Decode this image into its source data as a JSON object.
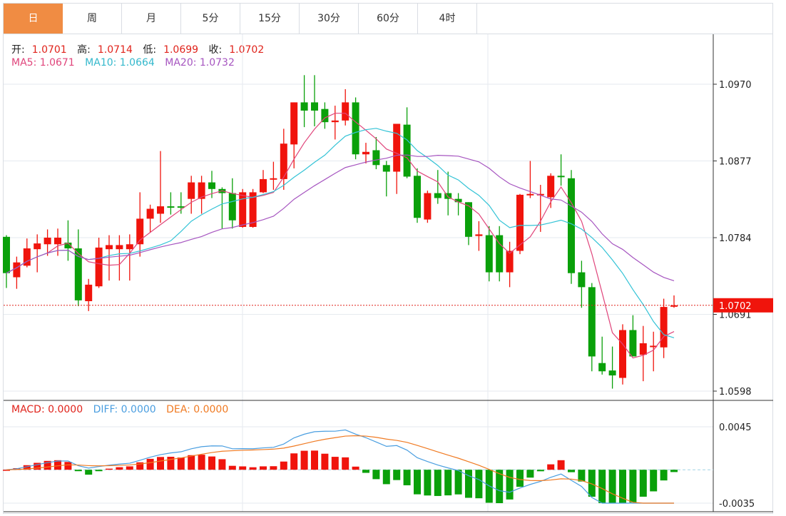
{
  "tabs": [
    {
      "label": "日",
      "active": true
    },
    {
      "label": "周",
      "active": false
    },
    {
      "label": "月",
      "active": false
    },
    {
      "label": "5分",
      "active": false
    },
    {
      "label": "15分",
      "active": false
    },
    {
      "label": "30分",
      "active": false
    },
    {
      "label": "60分",
      "active": false
    },
    {
      "label": "4时",
      "active": false
    }
  ],
  "ohlc_legend": {
    "open_label": "开:",
    "open": "1.0701",
    "high_label": "高:",
    "high": "1.0714",
    "low_label": "低:",
    "low": "1.0699",
    "close_label": "收:",
    "close": "1.0702"
  },
  "ma_legend": {
    "ma5": "MA5: 1.0671",
    "ma10": "MA10: 1.0664",
    "ma20": "MA20: 1.0732"
  },
  "macd_legend": {
    "macd": "MACD: 0.0000",
    "diff": "DIFF: 0.0000",
    "dea": "DEA: 0.0000"
  },
  "colors": {
    "up": "#f0140c",
    "down": "#0aa00a",
    "ma5": "#e0457b",
    "ma10": "#33c3d6",
    "ma20": "#a655c0",
    "diff": "#4a9ee0",
    "dea": "#f07a22",
    "active_tab": "#f08c43"
  },
  "chart_data": [
    {
      "type": "candlestick",
      "ylim": [
        1.0598,
        1.097
      ],
      "yticks": [
        "1.0970",
        "1.0877",
        "1.0784",
        "1.0691",
        "1.0598"
      ],
      "last_price": "1.0702",
      "ma_periods": [
        5,
        10,
        20
      ],
      "grid": true,
      "ohlc": [
        [
          1.0785,
          1.0787,
          1.0723,
          1.0741
        ],
        [
          1.0736,
          1.0761,
          1.0722,
          1.0754
        ],
        [
          1.075,
          1.0783,
          1.0748,
          1.0771
        ],
        [
          1.077,
          1.0788,
          1.0742,
          1.0777
        ],
        [
          1.0776,
          1.0794,
          1.0762,
          1.0784
        ],
        [
          1.0776,
          1.0795,
          1.0762,
          1.0784
        ],
        [
          1.0778,
          1.0805,
          1.0756,
          1.0771
        ],
        [
          1.0771,
          1.0794,
          1.0701,
          1.0708
        ],
        [
          1.0707,
          1.0734,
          1.0695,
          1.0727
        ],
        [
          1.0725,
          1.0784,
          1.0723,
          1.0772
        ],
        [
          1.077,
          1.0787,
          1.0732,
          1.0775
        ],
        [
          1.077,
          1.0787,
          1.0732,
          1.0775
        ],
        [
          1.077,
          1.0788,
          1.0732,
          1.0776
        ],
        [
          1.0776,
          1.0839,
          1.0761,
          1.0807
        ],
        [
          1.0807,
          1.0824,
          1.079,
          1.0819
        ],
        [
          1.0813,
          1.0889,
          1.0802,
          1.0822
        ],
        [
          1.0822,
          1.0839,
          1.0812,
          1.0821
        ],
        [
          1.0822,
          1.0839,
          1.0813,
          1.0821
        ],
        [
          1.0831,
          1.0859,
          1.0813,
          1.0851
        ],
        [
          1.0831,
          1.0859,
          1.0813,
          1.0851
        ],
        [
          1.0851,
          1.0865,
          1.0832,
          1.0843
        ],
        [
          1.0843,
          1.0845,
          1.0795,
          1.0838
        ],
        [
          1.0838,
          1.0856,
          1.0795,
          1.0805
        ],
        [
          1.0797,
          1.0843,
          1.0796,
          1.0839
        ],
        [
          1.0797,
          1.0843,
          1.0796,
          1.0839
        ],
        [
          1.0839,
          1.0866,
          1.0838,
          1.0855
        ],
        [
          1.0855,
          1.0876,
          1.0842,
          1.0856
        ],
        [
          1.0855,
          1.0916,
          1.0842,
          1.0898
        ],
        [
          1.0897,
          1.0948,
          1.0868,
          1.0948
        ],
        [
          1.0948,
          1.0981,
          1.0918,
          1.0938
        ],
        [
          1.0948,
          1.0981,
          1.0919,
          1.0938
        ],
        [
          1.094,
          1.0948,
          1.0916,
          1.0924
        ],
        [
          1.0924,
          1.0944,
          1.0903,
          1.0926
        ],
        [
          1.0926,
          1.0964,
          1.092,
          1.0948
        ],
        [
          1.0948,
          1.0954,
          1.0879,
          1.0885
        ],
        [
          1.0885,
          1.0899,
          1.0874,
          1.0888
        ],
        [
          1.089,
          1.0906,
          1.0867,
          1.0872
        ],
        [
          1.0872,
          1.0877,
          1.0834,
          1.0864
        ],
        [
          1.0864,
          1.0922,
          1.0837,
          1.0922
        ],
        [
          1.0921,
          1.0942,
          1.0856,
          1.0858
        ],
        [
          1.0859,
          1.0868,
          1.0802,
          1.0808
        ],
        [
          1.0806,
          1.0841,
          1.0802,
          1.0838
        ],
        [
          1.0838,
          1.0866,
          1.0825,
          1.0832
        ],
        [
          1.0838,
          1.0864,
          1.0811,
          1.0831
        ],
        [
          1.0831,
          1.0838,
          1.0811,
          1.0827
        ],
        [
          1.0827,
          1.0827,
          1.0775,
          1.0785
        ],
        [
          1.0786,
          1.0804,
          1.0768,
          1.0788
        ],
        [
          1.0787,
          1.0798,
          1.0731,
          1.0742
        ],
        [
          1.0787,
          1.0798,
          1.0731,
          1.0742
        ],
        [
          1.0742,
          1.0779,
          1.0724,
          1.0768
        ],
        [
          1.0768,
          1.0837,
          1.0764,
          1.0836
        ],
        [
          1.0836,
          1.0877,
          1.0832,
          1.0837
        ],
        [
          1.0836,
          1.0848,
          1.0791,
          1.0837
        ],
        [
          1.0833,
          1.0862,
          1.082,
          1.0859
        ],
        [
          1.0859,
          1.0885,
          1.0847,
          1.0858
        ],
        [
          1.0856,
          1.0866,
          1.0728,
          1.0741
        ],
        [
          1.0742,
          1.0756,
          1.0699,
          1.0724
        ],
        [
          1.0724,
          1.0729,
          1.0622,
          1.064
        ],
        [
          1.0632,
          1.0664,
          1.0618,
          1.0622
        ],
        [
          1.0623,
          1.0652,
          1.0601,
          1.0617
        ],
        [
          1.0614,
          1.0679,
          1.0606,
          1.0672
        ],
        [
          1.0672,
          1.069,
          1.064,
          1.064
        ],
        [
          1.0642,
          1.0677,
          1.061,
          1.0656
        ],
        [
          1.0652,
          1.067,
          1.0622,
          1.0653
        ],
        [
          1.0651,
          1.071,
          1.0638,
          1.07
        ],
        [
          1.0701,
          1.0714,
          1.0699,
          1.0702
        ]
      ]
    },
    {
      "type": "macd",
      "ylim": [
        -0.0035,
        0.0045
      ],
      "yticks": [
        "0.0045",
        "-0.0035"
      ],
      "params": [
        12,
        26,
        9
      ]
    }
  ]
}
